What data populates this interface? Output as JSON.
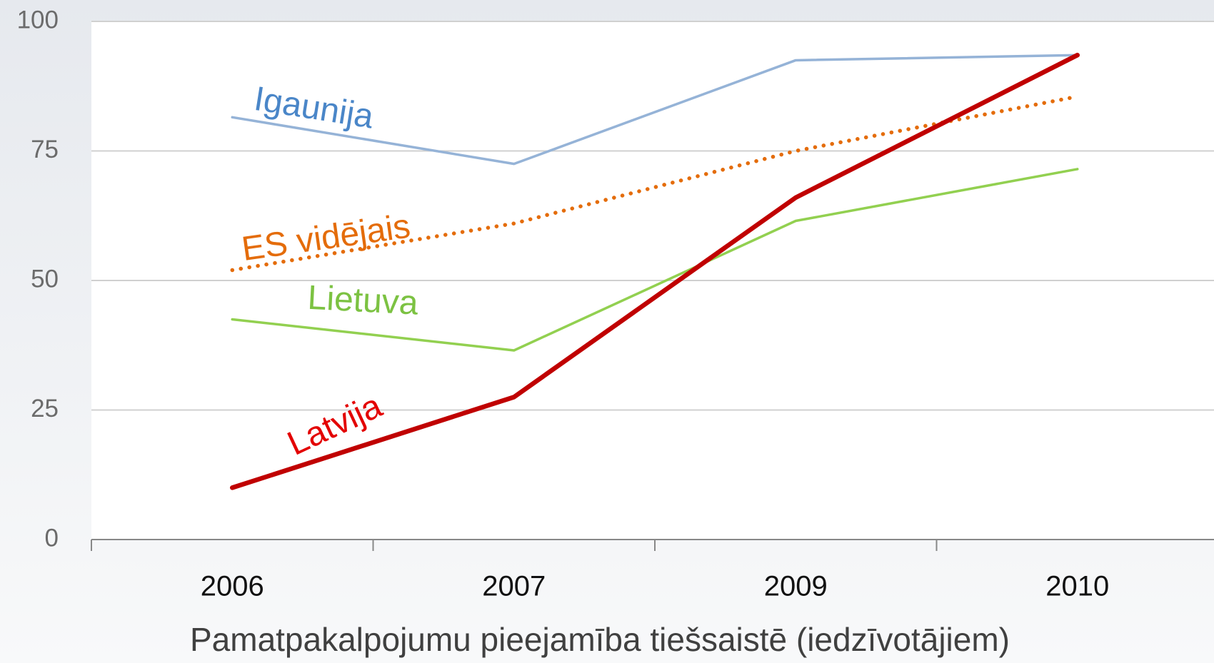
{
  "chart_data": {
    "type": "line",
    "x_label": "Pamatpakalpojumu pieejamība tiešsaistē (iedzīvotājiem)",
    "categories": [
      "2006",
      "2007",
      "2009",
      "2010"
    ],
    "series": [
      {
        "name": "Igaunija",
        "color": "#95b3d7",
        "values": [
          81.5,
          72.5,
          92.5,
          93.5
        ]
      },
      {
        "name": "ES vidējais",
        "color": "#e46c0a",
        "values": [
          52,
          61,
          75,
          85.5
        ]
      },
      {
        "name": "Lietuva",
        "color": "#92d050",
        "values": [
          42.5,
          36.5,
          61.5,
          71.5
        ]
      },
      {
        "name": "Latvija",
        "color": "#c00000",
        "values": [
          10,
          27.5,
          66,
          93.5
        ]
      }
    ],
    "ylim": [
      0,
      100
    ],
    "yticks": [
      0,
      25,
      50,
      75,
      100
    ],
    "grid": true
  }
}
